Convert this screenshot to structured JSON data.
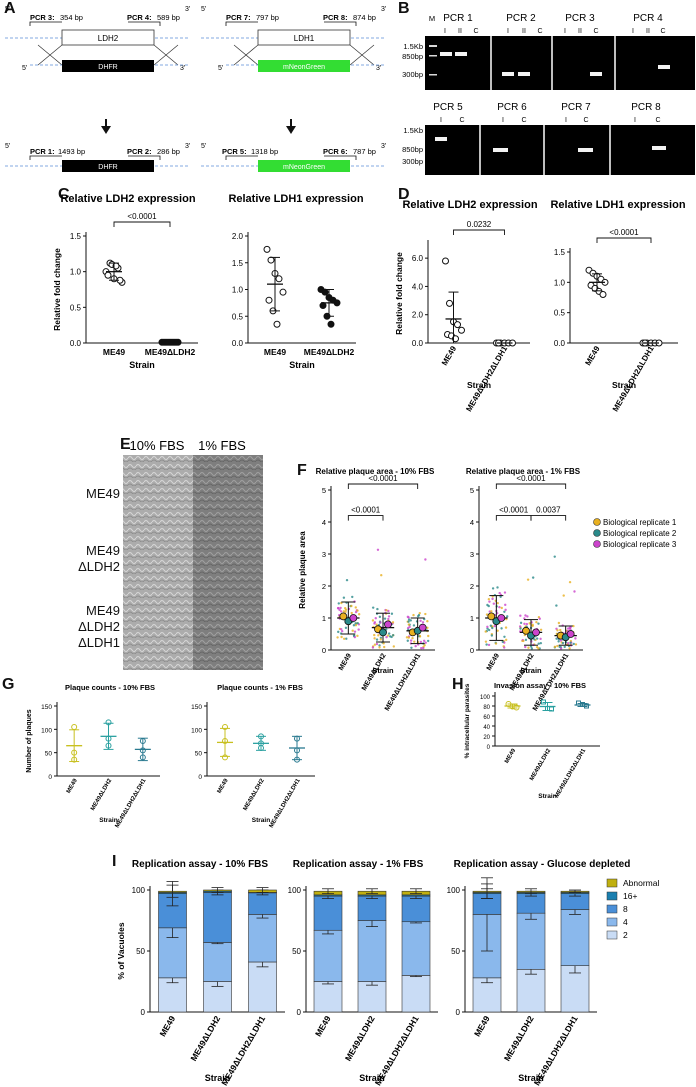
{
  "panels": {
    "A": "A",
    "B": "B",
    "C": "C",
    "D": "D",
    "E": "E",
    "F": "F",
    "G": "G",
    "H": "H",
    "I": "I"
  },
  "panel_a": {
    "five": "5'",
    "three": "3'",
    "left": {
      "top_gene": "LDH2",
      "cassette": "DHFR",
      "pcr_top_left": "PCR 3:",
      "pcr_top_left_bp": "354 bp",
      "pcr_top_right": "PCR 4:",
      "pcr_top_right_bp": "589 bp",
      "pcr_bottom_left": "PCR 1:",
      "pcr_bottom_left_bp": "1493 bp",
      "pcr_bottom_right": "PCR 2:",
      "pcr_bottom_right_bp": "286 bp"
    },
    "right": {
      "top_gene": "LDH1",
      "cassette": "mNeonGreen",
      "pcr_top_left": "PCR 7:",
      "pcr_top_left_bp": "797 bp",
      "pcr_top_right": "PCR 8:",
      "pcr_top_right_bp": "874 bp",
      "pcr_bottom_left": "PCR 5:",
      "pcr_bottom_left_bp": "1318 bp",
      "pcr_bottom_right": "PCR 6:",
      "pcr_bottom_right_bp": "787 bp"
    },
    "colors": {
      "dhfr": "#000000",
      "mneongreen": "#33dd33",
      "dashed": "#5b8ed6"
    }
  },
  "panel_b": {
    "ladder": [
      "1.5Kb",
      "850bp",
      "300bp"
    ],
    "ladder_lane": "M",
    "row1": [
      {
        "name": "PCR 1",
        "lanes": [
          "I",
          "II",
          "C"
        ]
      },
      {
        "name": "PCR 2",
        "lanes": [
          "I",
          "II",
          "C"
        ]
      },
      {
        "name": "PCR 3",
        "lanes": [
          "I",
          "II",
          "C"
        ]
      },
      {
        "name": "PCR 4",
        "lanes": [
          "I",
          "II",
          "C"
        ]
      }
    ],
    "row2": [
      {
        "name": "PCR 5",
        "lanes": [
          "I",
          "C"
        ]
      },
      {
        "name": "PCR 6",
        "lanes": [
          "I",
          "C"
        ]
      },
      {
        "name": "PCR 7",
        "lanes": [
          "I",
          "C"
        ]
      },
      {
        "name": "PCR 8",
        "lanes": [
          "I",
          "C"
        ]
      }
    ]
  },
  "panel_e": {
    "columns": [
      "10% FBS",
      "1% FBS"
    ],
    "rows": [
      [
        "ME49"
      ],
      [
        "ME49",
        "ΔLDH2"
      ],
      [
        "ME49",
        "ΔLDH2",
        "ΔLDH1"
      ]
    ]
  },
  "chart_data": [
    {
      "id": "C1",
      "type": "scatter",
      "title": "Relative LDH2 expression",
      "ylabel": "Relative fold change",
      "xlabel": "Strain",
      "categories": [
        "ME49",
        "ME49ΔLDH2"
      ],
      "ylim": [
        0,
        1.5
      ],
      "yticks": [
        "0.0",
        "0.5",
        "1.0",
        "1.5"
      ],
      "series": [
        {
          "values": [
            1.0,
            1.12,
            0.9,
            1.05,
            0.85,
            0.95,
            1.1,
            1.08,
            0.88
          ],
          "mean": 1.0,
          "sd": 0.12,
          "marker": "open"
        },
        {
          "values": [
            0.01,
            0.01,
            0.01,
            0.01,
            0.01,
            0.01,
            0.01,
            0.01,
            0.01
          ],
          "mean": 0.01,
          "sd": 0.0,
          "marker": "filled"
        }
      ],
      "brackets": [
        {
          "from": 0,
          "to": 1,
          "label": "<0.0001"
        }
      ]
    },
    {
      "id": "C2",
      "type": "scatter",
      "title": "Relative LDH1 expression",
      "ylabel": "",
      "xlabel": "Strain",
      "categories": [
        "ME49",
        "ME49ΔLDH2"
      ],
      "ylim": [
        0,
        2.0
      ],
      "yticks": [
        "0.0",
        "0.5",
        "1.0",
        "1.5",
        "2.0"
      ],
      "series": [
        {
          "values": [
            1.75,
            1.55,
            1.3,
            1.2,
            0.95,
            0.8,
            0.6,
            0.35
          ],
          "mean": 1.1,
          "sd": 0.5,
          "marker": "open"
        },
        {
          "values": [
            1.0,
            0.95,
            0.85,
            0.8,
            0.75,
            0.7,
            0.5,
            0.35
          ],
          "mean": 0.75,
          "sd": 0.25,
          "marker": "filled"
        }
      ],
      "brackets": []
    },
    {
      "id": "D1",
      "type": "scatter",
      "title": "Relative LDH2 expression",
      "ylabel": "Relative fold change",
      "xlabel": "Strain",
      "categories": [
        "ME49",
        "ME49ΔLDH2ΔLDH1"
      ],
      "ylim": [
        0,
        7.0
      ],
      "yticks": [
        "0.0",
        "2.0",
        "4.0",
        "6.0"
      ],
      "series": [
        {
          "values": [
            5.8,
            2.8,
            1.5,
            1.3,
            0.9,
            0.6,
            0.5,
            0.3
          ],
          "mean": 1.7,
          "sd": 1.9,
          "marker": "open"
        },
        {
          "values": [
            0.0,
            0.0,
            0.0,
            0.0,
            0.0,
            0.0
          ],
          "mean": 0.0,
          "sd": 0.0,
          "marker": "open"
        }
      ],
      "brackets": [
        {
          "from": 0,
          "to": 1,
          "label": "0.0232"
        }
      ]
    },
    {
      "id": "D2",
      "type": "scatter",
      "title": "Relative LDH1 expression",
      "ylabel": "",
      "xlabel": "Strain",
      "categories": [
        "ME49",
        "ME49ΔLDH2ΔLDH1"
      ],
      "ylim": [
        0,
        1.5
      ],
      "yticks": [
        "0.0",
        "0.5",
        "1.0",
        "1.5"
      ],
      "series": [
        {
          "values": [
            1.2,
            1.15,
            1.1,
            1.05,
            1.0,
            0.95,
            0.9,
            0.85,
            0.8
          ],
          "mean": 1.0,
          "sd": 0.14,
          "marker": "open"
        },
        {
          "values": [
            0.0,
            0.0,
            0.0,
            0.0,
            0.0,
            0.0
          ],
          "mean": 0.0,
          "sd": 0.0,
          "marker": "open"
        }
      ],
      "brackets": [
        {
          "from": 0,
          "to": 1,
          "label": "<0.0001"
        }
      ]
    },
    {
      "id": "F1",
      "type": "scatter",
      "title": "Relative plaque area - 10% FBS",
      "ylabel": "Relative plaque area",
      "xlabel": "Strain",
      "categories": [
        "ME49",
        "ME49ΔLDH2",
        "ME49ΔLDH2ΔLDH1"
      ],
      "ylim": [
        0,
        5
      ],
      "yticks": [
        "0",
        "1",
        "2",
        "3",
        "4",
        "5"
      ],
      "means": [
        1.0,
        0.7,
        0.6
      ],
      "sds": [
        0.5,
        0.45,
        0.4
      ],
      "replicate_means": [
        [
          1.05,
          0.9,
          1.0
        ],
        [
          0.65,
          0.55,
          0.8
        ],
        [
          0.55,
          0.6,
          0.7
        ]
      ],
      "brackets": [
        {
          "from": 0,
          "to": 1,
          "label": "<0.0001",
          "level": 1
        },
        {
          "from": 0,
          "to": 2,
          "label": "<0.0001",
          "level": 2
        }
      ]
    },
    {
      "id": "F2",
      "type": "scatter",
      "title": "Relative plaque area - 1% FBS",
      "ylabel": "",
      "xlabel": "Strain",
      "categories": [
        "ME49",
        "ME49ΔLDH2",
        "ME49ΔLDH2ΔLDH1"
      ],
      "ylim": [
        0,
        5
      ],
      "yticks": [
        "0",
        "1",
        "2",
        "3",
        "4",
        "5"
      ],
      "means": [
        1.0,
        0.55,
        0.45
      ],
      "sds": [
        0.7,
        0.4,
        0.3
      ],
      "replicate_means": [
        [
          1.05,
          0.9,
          1.0
        ],
        [
          0.6,
          0.45,
          0.55
        ],
        [
          0.45,
          0.4,
          0.5
        ]
      ],
      "brackets": [
        {
          "from": 0,
          "to": 1,
          "label": "<0.0001",
          "level": 1
        },
        {
          "from": 1,
          "to": 2,
          "label": "0.0037",
          "level": 1
        },
        {
          "from": 0,
          "to": 2,
          "label": "<0.0001",
          "level": 2
        }
      ],
      "legend": [
        "Biological replicate 1",
        "Biological replicate 2",
        "Biological replicate 3"
      ],
      "legend_colors": [
        "#e8b020",
        "#2a8a8a",
        "#cc44cc"
      ]
    },
    {
      "id": "G1",
      "type": "scatter",
      "title": "Plaque counts - 10% FBS",
      "ylabel": "Number of plaques",
      "xlabel": "Strain",
      "categories": [
        "ME49",
        "ME49ΔLDH2",
        "ME49ΔLDH2ΔLDH1"
      ],
      "ylim": [
        0,
        150
      ],
      "yticks": [
        "0",
        "50",
        "100",
        "150"
      ],
      "colors": [
        "#c8c020",
        "#2aa0a0",
        "#2a7a90"
      ],
      "points": [
        [
          105,
          50,
          35
        ],
        [
          115,
          80,
          65
        ],
        [
          75,
          55,
          40
        ]
      ],
      "means": [
        65,
        85,
        57
      ],
      "sds": [
        34,
        28,
        24
      ]
    },
    {
      "id": "G2",
      "type": "scatter",
      "title": "Plaque counts - 1% FBS",
      "ylabel": "",
      "xlabel": "Strain",
      "categories": [
        "ME49",
        "ME49ΔLDH2",
        "ME49ΔLDH2ΔLDH1"
      ],
      "ylim": [
        0,
        150
      ],
      "yticks": [
        "0",
        "50",
        "100",
        "150"
      ],
      "colors": [
        "#c8c020",
        "#2aa0a0",
        "#2a7a90"
      ],
      "points": [
        [
          105,
          75,
          40
        ],
        [
          85,
          70,
          60
        ],
        [
          80,
          55,
          35
        ]
      ],
      "means": [
        72,
        70,
        60
      ],
      "sds": [
        30,
        15,
        25
      ]
    },
    {
      "id": "H",
      "type": "scatter",
      "title": "Invasion assay - 10% FBS",
      "ylabel": "% intracellular parasites",
      "xlabel": "Strain",
      "categories": [
        "ME49",
        "ME49ΔLDH2",
        "ME49ΔLDH2ΔLDH1"
      ],
      "ylim": [
        0,
        100
      ],
      "yticks": [
        "0",
        "20",
        "40",
        "60",
        "80",
        "100"
      ],
      "colors": [
        "#c8c020",
        "#2aa0a0",
        "#2a7a90"
      ],
      "points": [
        [
          84,
          79,
          77
        ],
        [
          88,
          75,
          74
        ],
        [
          86,
          83,
          80
        ]
      ],
      "means": [
        80,
        79,
        82
      ],
      "sds": [
        4,
        8,
        3
      ]
    },
    {
      "id": "I1",
      "type": "bar",
      "title": "Replication assay - 10% FBS",
      "ylabel": "% of Vacuoles",
      "xlabel": "Strain",
      "categories": [
        "ME49",
        "ME49ΔLDH2",
        "ME49ΔLDH2ΔLDH1"
      ],
      "ylim": [
        0,
        100
      ],
      "yticks": [
        "0",
        "50",
        "100"
      ],
      "series": [
        {
          "name": "2",
          "values": [
            28,
            25,
            41
          ],
          "err": [
            4,
            4,
            4
          ]
        },
        {
          "name": "4",
          "values": [
            41,
            32,
            39
          ],
          "err": [
            8,
            1,
            3
          ]
        },
        {
          "name": "8",
          "values": [
            28,
            41,
            18
          ],
          "err": [
            10,
            2,
            2
          ]
        },
        {
          "name": "16+",
          "values": [
            1,
            1,
            0
          ],
          "err": [
            0,
            0,
            0
          ]
        },
        {
          "name": "Abnormal",
          "values": [
            1,
            1,
            2
          ],
          "err": [
            5,
            2,
            2
          ]
        }
      ]
    },
    {
      "id": "I2",
      "type": "bar",
      "title": "Replication assay - 1% FBS",
      "ylabel": "",
      "xlabel": "Strain",
      "categories": [
        "ME49",
        "ME49ΔLDH2",
        "ME49ΔLDH2ΔLDH1"
      ],
      "ylim": [
        0,
        100
      ],
      "yticks": [
        "0",
        "50",
        "100"
      ],
      "series": [
        {
          "name": "2",
          "values": [
            25,
            25,
            30
          ],
          "err": [
            2,
            3,
            1
          ]
        },
        {
          "name": "4",
          "values": [
            42,
            50,
            44
          ],
          "err": [
            3,
            5,
            1
          ]
        },
        {
          "name": "8",
          "values": [
            28,
            20,
            21
          ],
          "err": [
            2,
            2,
            2
          ]
        },
        {
          "name": "16+",
          "values": [
            1,
            1,
            1
          ],
          "err": [
            0,
            0,
            0
          ]
        },
        {
          "name": "Abnormal",
          "values": [
            3,
            3,
            3
          ],
          "err": [
            2,
            2,
            2
          ]
        }
      ]
    },
    {
      "id": "I3",
      "type": "bar",
      "title": "Replication assay - Glucose depleted",
      "ylabel": "",
      "xlabel": "Strain",
      "categories": [
        "ME49",
        "ME49ΔLDH2",
        "ME49ΔLDH2ΔLDH1"
      ],
      "ylim": [
        0,
        100
      ],
      "yticks": [
        "0",
        "50",
        "100"
      ],
      "series": [
        {
          "name": "2",
          "values": [
            28,
            35,
            38
          ],
          "err": [
            4,
            4,
            6
          ]
        },
        {
          "name": "4",
          "values": [
            52,
            46,
            46
          ],
          "err": [
            30,
            5,
            4
          ]
        },
        {
          "name": "8",
          "values": [
            17,
            16,
            13
          ],
          "err": [
            4,
            2,
            2
          ]
        },
        {
          "name": "16+",
          "values": [
            1,
            1,
            1
          ],
          "err": [
            0,
            0,
            0
          ]
        },
        {
          "name": "Abnormal",
          "values": [
            1,
            1,
            1
          ],
          "err": [
            6,
            2,
            1
          ]
        }
      ],
      "legend": [
        "Abnormal",
        "16+",
        "8",
        "4",
        "2"
      ],
      "legend_colors": [
        "#c0b010",
        "#1a7fb0",
        "#4a8fd8",
        "#8ab8ec",
        "#c9dcf5"
      ]
    }
  ]
}
